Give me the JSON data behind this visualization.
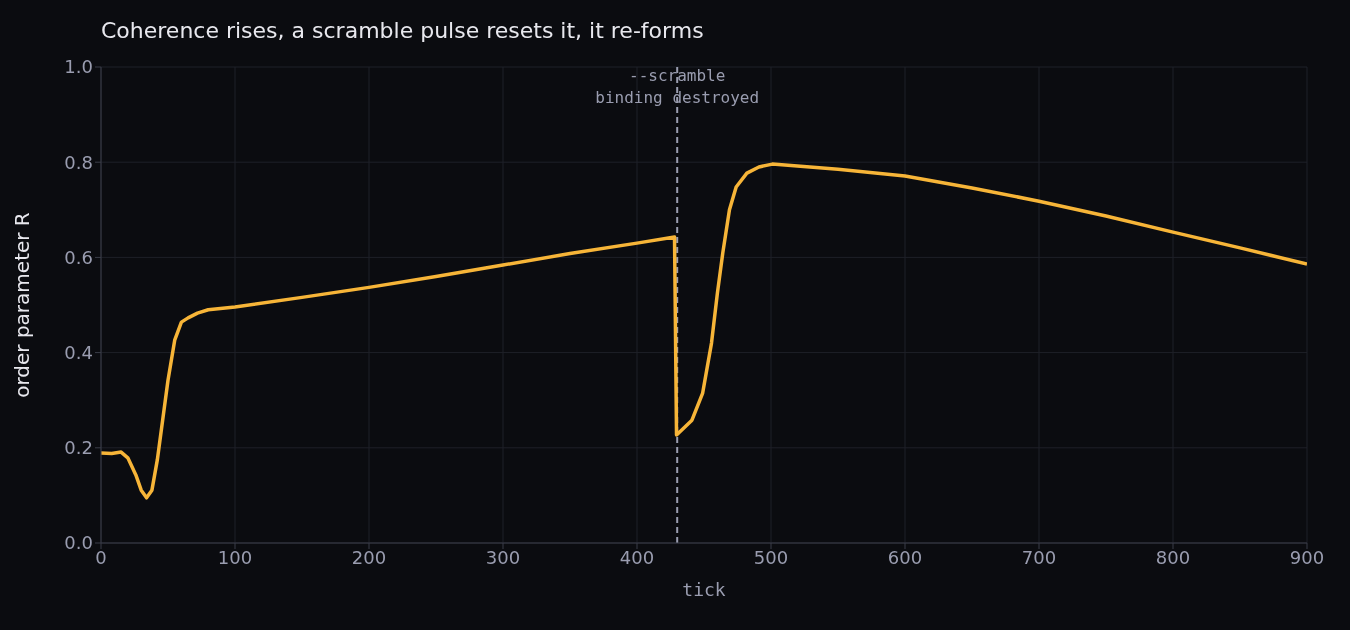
{
  "chart_data": {
    "type": "line",
    "title": "Coherence rises, a scramble pulse resets it, it re-forms",
    "xlabel": "tick",
    "ylabel": "order parameter  R",
    "series": [
      {
        "color": "#f7b538",
        "x": [
          0,
          8,
          15,
          20,
          26,
          30,
          34,
          38,
          42,
          46,
          50,
          55,
          60,
          65,
          72,
          80,
          100,
          150,
          200,
          250,
          300,
          350,
          400,
          428,
          429.5,
          441,
          449,
          455.6,
          460,
          464,
          469,
          474,
          482,
          491,
          501,
          550,
          600,
          650,
          700,
          750,
          800,
          850,
          900
        ],
        "values": [
          0.189,
          0.188,
          0.191,
          0.179,
          0.143,
          0.111,
          0.095,
          0.111,
          0.174,
          0.258,
          0.342,
          0.426,
          0.464,
          0.473,
          0.483,
          0.49,
          0.496,
          0.516,
          0.537,
          0.56,
          0.584,
          0.608,
          0.63,
          0.643,
          0.227,
          0.258,
          0.315,
          0.42,
          0.525,
          0.609,
          0.7,
          0.748,
          0.777,
          0.79,
          0.796,
          0.785,
          0.771,
          0.746,
          0.718,
          0.687,
          0.653,
          0.62,
          0.586
        ]
      }
    ],
    "xlim": [
      0,
      900
    ],
    "xticks": [
      0,
      100,
      200,
      300,
      400,
      500,
      600,
      700,
      800,
      900
    ],
    "ylim": [
      0,
      1
    ],
    "yticks": [
      {
        "value": 0,
        "label": "0.0"
      },
      {
        "value": 0.2,
        "label": "0.2"
      },
      {
        "value": 0.4,
        "label": "0.4"
      },
      {
        "value": 0.6,
        "label": "0.6"
      },
      {
        "value": 0.8,
        "label": "0.8"
      },
      {
        "value": 1,
        "label": "1.0"
      }
    ],
    "grid": true,
    "marker": "none",
    "line_style": "solid",
    "ref_lines": [
      {
        "axis": "x",
        "value": 430,
        "label": "--scramble\nbinding destroyed",
        "color": "#9a9db0",
        "line_style": "dashed"
      }
    ]
  }
}
